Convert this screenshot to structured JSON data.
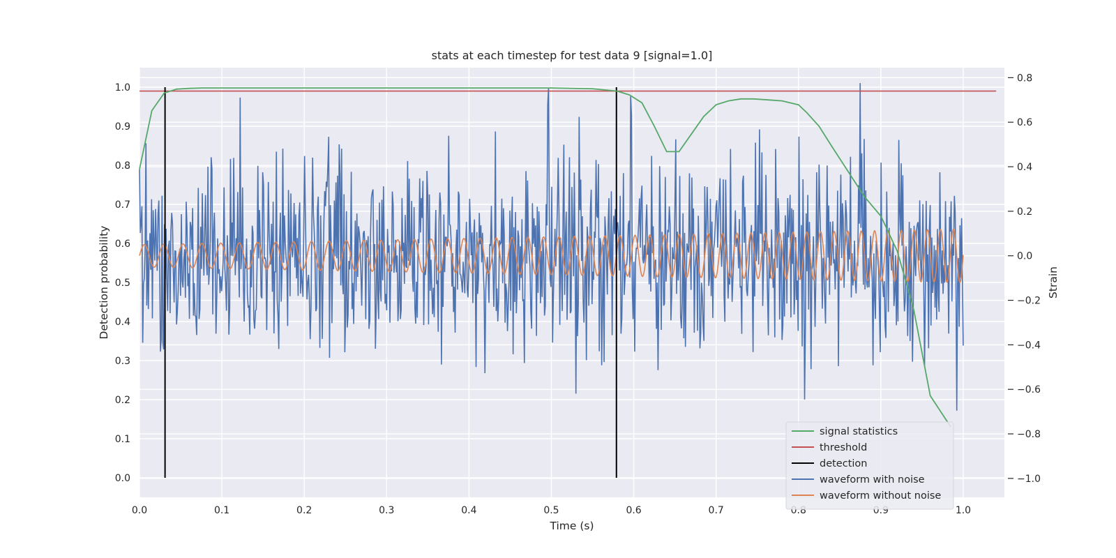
{
  "chart_data": {
    "type": "line",
    "title": "stats at each timestep for test data 9 [signal=1.0]",
    "xlabel": "Time (s)",
    "ylabel_left": "Detection probability",
    "ylabel_right": "Strain",
    "xlim": [
      0.0,
      1.05
    ],
    "ylim_left": [
      -0.05,
      1.05
    ],
    "ylim_right": [
      -1.085,
      0.845
    ],
    "x_ticks": [
      "0.0",
      "0.1",
      "0.2",
      "0.3",
      "0.4",
      "0.5",
      "0.6",
      "0.7",
      "0.8",
      "0.9",
      "1.0"
    ],
    "x_tick_values": [
      0,
      0.1,
      0.2,
      0.3,
      0.4,
      0.5,
      0.6,
      0.7,
      0.8,
      0.9,
      1.0
    ],
    "y_left_ticks": [
      "0.0",
      "0.1",
      "0.2",
      "0.3",
      "0.4",
      "0.5",
      "0.6",
      "0.7",
      "0.8",
      "0.9",
      "1.0"
    ],
    "y_left_tick_values": [
      0,
      0.1,
      0.2,
      0.3,
      0.4,
      0.5,
      0.6,
      0.7,
      0.8,
      0.9,
      1.0
    ],
    "y_right_ticks": [
      "−1.0",
      "−0.8",
      "−0.6",
      "−0.4",
      "−0.2",
      "0.0",
      "0.2",
      "0.4",
      "0.6",
      "0.8"
    ],
    "y_right_tick_values": [
      -1.0,
      -0.8,
      -0.6,
      -0.4,
      -0.2,
      0.0,
      0.2,
      0.4,
      0.6,
      0.8
    ],
    "grid": true,
    "legend_position": "bottom-right",
    "series": [
      {
        "name": "signal statistics",
        "axis": "left",
        "color": "#55a868",
        "x": [
          0.0,
          0.015,
          0.03,
          0.045,
          0.06,
          0.075,
          0.09,
          0.2,
          0.3,
          0.4,
          0.5,
          0.55,
          0.58,
          0.595,
          0.61,
          0.625,
          0.64,
          0.655,
          0.67,
          0.685,
          0.7,
          0.715,
          0.73,
          0.745,
          0.76,
          0.78,
          0.8,
          0.81,
          0.825,
          0.84,
          0.86,
          0.88,
          0.9,
          0.92,
          0.94,
          0.96,
          0.985
        ],
        "y": [
          0.79,
          0.94,
          0.985,
          0.995,
          0.997,
          0.998,
          0.998,
          0.998,
          0.998,
          0.998,
          0.998,
          0.996,
          0.99,
          0.98,
          0.96,
          0.9,
          0.835,
          0.835,
          0.88,
          0.925,
          0.955,
          0.965,
          0.97,
          0.97,
          0.968,
          0.965,
          0.955,
          0.935,
          0.9,
          0.85,
          0.785,
          0.72,
          0.67,
          0.58,
          0.43,
          0.21,
          0.13
        ]
      },
      {
        "name": "threshold",
        "axis": "left",
        "color": "#c44e52",
        "x": [
          0.0,
          1.04
        ],
        "y": [
          0.99,
          0.99
        ]
      },
      {
        "name": "detection",
        "axis": "left",
        "color": "#000000",
        "x": [
          0.031,
          0.579
        ],
        "y": [
          1.0,
          1.0
        ]
      },
      {
        "name": "waveform with noise",
        "axis": "right",
        "color": "#4c72b0",
        "x_range": [
          0.0,
          1.0
        ],
        "samples": 1024,
        "std": 0.22,
        "min": -1.0,
        "max": 0.8
      },
      {
        "name": "waveform without noise",
        "axis": "right",
        "color": "#dd8452",
        "x_range": [
          0.0,
          1.0
        ],
        "amplitude_start": 0.05,
        "amplitude_end": 0.12,
        "frequency_start_hz": 42,
        "frequency_end_hz": 64
      }
    ]
  }
}
